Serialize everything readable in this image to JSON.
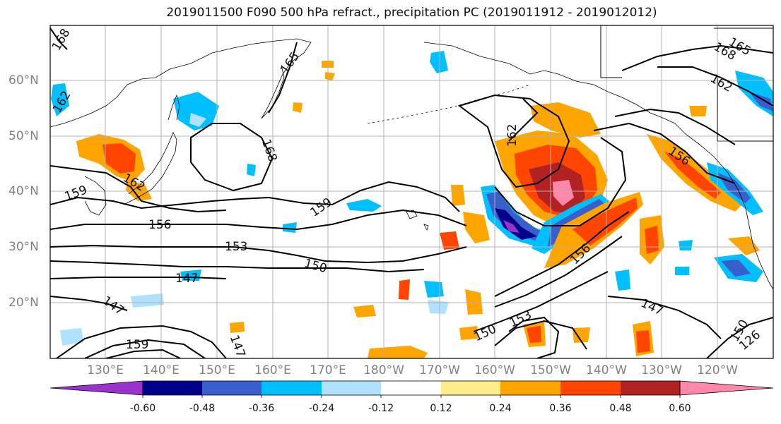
{
  "title": "2019011500 F090 500 hPa refract., precipitation PC (2019011912 - 2019012012)",
  "lat_labels": [
    "60°N",
    "50°N",
    "40°N",
    "30°N",
    "20°N"
  ],
  "lon_labels": [
    "130°E",
    "140°E",
    "150°E",
    "160°E",
    "170°E",
    "180°W",
    "170°W",
    "160°W",
    "150°W",
    "140°W",
    "130°W",
    "120°W"
  ],
  "contour_labels": [
    "168",
    "165",
    "162",
    "168",
    "168",
    "162",
    "159",
    "156",
    "153",
    "150",
    "147",
    "159",
    "162",
    "165",
    "156",
    "150",
    "153",
    "147",
    "156",
    "162",
    "159",
    "150",
    "126",
    "147",
    "147"
  ],
  "colorbar": {
    "tick_labels": [
      "-0.60",
      "-0.48",
      "-0.36",
      "-0.24",
      "-0.12",
      "0.12",
      "0.24",
      "0.36",
      "0.48",
      "0.60"
    ],
    "colors": [
      "#9933cc",
      "#00008b",
      "#3a5fcd",
      "#00bfff",
      "#b0e2ff",
      "#ffffff",
      "#ffec8b",
      "#ffa500",
      "#ff4500",
      "#b22222",
      "#ff88aa"
    ]
  }
}
